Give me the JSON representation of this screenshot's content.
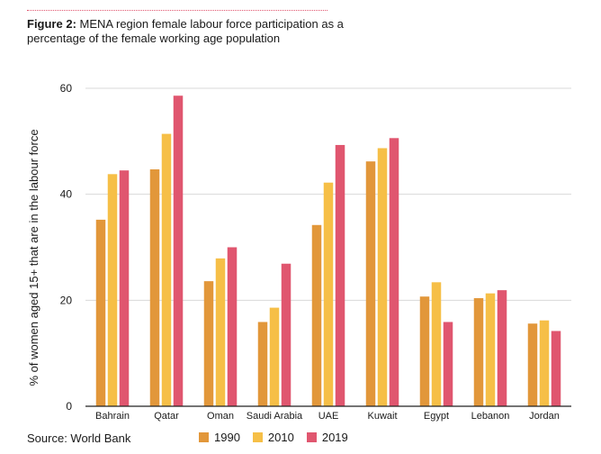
{
  "figure": {
    "label": "Figure 2:",
    "title": "MENA region female labour force participation as a percentage of the female working age population"
  },
  "source": "Source: World Bank",
  "colors": {
    "1990": "#e2973a",
    "2010": "#f6bf47",
    "2019": "#e0566f",
    "grid": "#d9d9d9",
    "axis": "#222222"
  },
  "chart_data": {
    "type": "bar",
    "title": "",
    "xlabel": "",
    "ylabel": "% of women aged 15+ that are in the labour force",
    "ylim": [
      0,
      60
    ],
    "yticks": [
      "0",
      "20",
      "40",
      "60"
    ],
    "grid": true,
    "legend_position": "bottom",
    "categories": [
      "Bahrain",
      "Qatar",
      "Oman",
      "Saudi Arabia",
      "UAE",
      "Kuwait",
      "Egypt",
      "Lebanon",
      "Jordan"
    ],
    "series": [
      {
        "name": "1990",
        "values": [
          35.2,
          44.7,
          23.6,
          15.9,
          34.2,
          46.2,
          20.7,
          20.4,
          15.6
        ]
      },
      {
        "name": "2010",
        "values": [
          43.8,
          51.4,
          27.9,
          18.6,
          42.2,
          48.7,
          23.4,
          21.3,
          16.2
        ]
      },
      {
        "name": "2019",
        "values": [
          44.5,
          58.6,
          30.0,
          26.9,
          49.3,
          50.6,
          15.9,
          21.9,
          14.2
        ]
      }
    ]
  }
}
